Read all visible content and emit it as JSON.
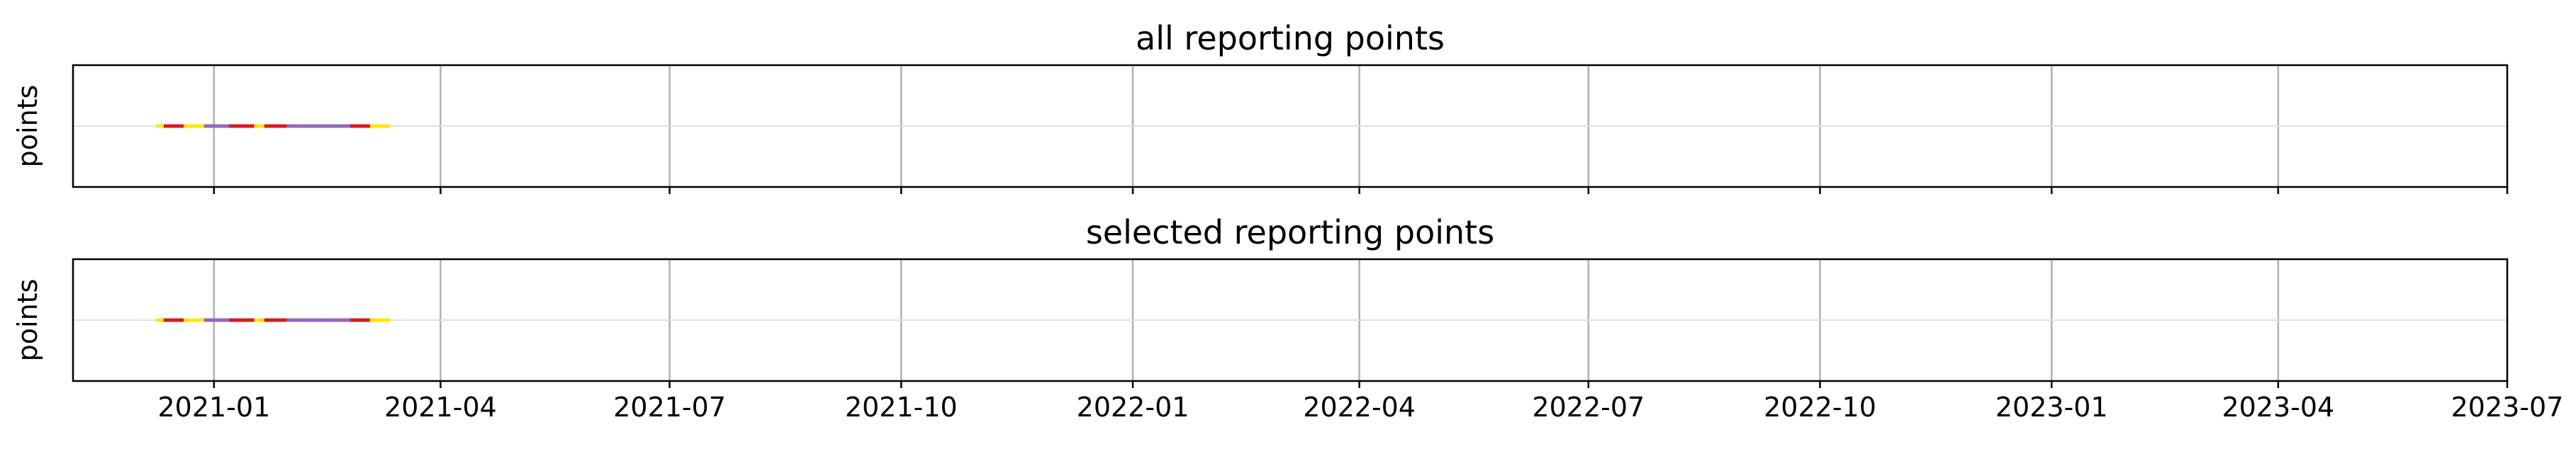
{
  "chart_data": [
    {
      "type": "line",
      "title": "all reporting points",
      "ylabel": "points",
      "xlabel": "",
      "xlim": [
        "2020-11-06",
        "2023-07-01"
      ],
      "ylim": [
        -0.05,
        0.05
      ],
      "yticks": [],
      "grid": {
        "x": true,
        "y_zero_line": true
      },
      "x_ticks": [
        "2021-01",
        "2021-04",
        "2021-07",
        "2021-10",
        "2022-01",
        "2022-04",
        "2022-07",
        "2022-10",
        "2023-01",
        "2023-04",
        "2023-07"
      ],
      "show_x_tick_labels": false,
      "segments": [
        {
          "start": "2020-12-09",
          "end": "2020-12-12",
          "y": 0,
          "color": "#ffe800"
        },
        {
          "start": "2020-12-12",
          "end": "2020-12-20",
          "y": 0,
          "color": "#d7191c"
        },
        {
          "start": "2020-12-20",
          "end": "2020-12-28",
          "y": 0,
          "color": "#ffe800"
        },
        {
          "start": "2020-12-28",
          "end": "2021-01-10",
          "y": 0,
          "color": "#9467bd"
        },
        {
          "start": "2021-01-07",
          "end": "2021-01-17",
          "y": 0,
          "color": "#d7191c"
        },
        {
          "start": "2021-01-17",
          "end": "2021-01-21",
          "y": 0,
          "color": "#ffe800"
        },
        {
          "start": "2021-01-21",
          "end": "2021-01-30",
          "y": 0,
          "color": "#d7191c"
        },
        {
          "start": "2021-01-30",
          "end": "2021-02-24",
          "y": 0,
          "color": "#9467bd"
        },
        {
          "start": "2021-02-24",
          "end": "2021-03-04",
          "y": 0,
          "color": "#d7191c"
        },
        {
          "start": "2021-03-04",
          "end": "2021-03-12",
          "y": 0,
          "color": "#ffe800"
        }
      ]
    },
    {
      "type": "line",
      "title": "selected reporting points",
      "ylabel": "points",
      "xlabel": "",
      "xlim": [
        "2020-11-06",
        "2023-07-01"
      ],
      "ylim": [
        -0.05,
        0.05
      ],
      "yticks": [],
      "grid": {
        "x": true,
        "y_zero_line": true
      },
      "x_ticks": [
        "2021-01",
        "2021-04",
        "2021-07",
        "2021-10",
        "2022-01",
        "2022-04",
        "2022-07",
        "2022-10",
        "2023-01",
        "2023-04",
        "2023-07"
      ],
      "show_x_tick_labels": true,
      "segments": [
        {
          "start": "2020-12-09",
          "end": "2020-12-12",
          "y": 0,
          "color": "#ffe800"
        },
        {
          "start": "2020-12-12",
          "end": "2020-12-20",
          "y": 0,
          "color": "#d7191c"
        },
        {
          "start": "2020-12-20",
          "end": "2020-12-28",
          "y": 0,
          "color": "#ffe800"
        },
        {
          "start": "2020-12-28",
          "end": "2021-01-10",
          "y": 0,
          "color": "#9467bd"
        },
        {
          "start": "2021-01-07",
          "end": "2021-01-17",
          "y": 0,
          "color": "#d7191c"
        },
        {
          "start": "2021-01-17",
          "end": "2021-01-21",
          "y": 0,
          "color": "#ffe800"
        },
        {
          "start": "2021-01-21",
          "end": "2021-01-30",
          "y": 0,
          "color": "#d7191c"
        },
        {
          "start": "2021-01-30",
          "end": "2021-02-24",
          "y": 0,
          "color": "#9467bd"
        },
        {
          "start": "2021-02-24",
          "end": "2021-03-04",
          "y": 0,
          "color": "#d7191c"
        },
        {
          "start": "2021-03-04",
          "end": "2021-03-12",
          "y": 0,
          "color": "#ffe800"
        }
      ]
    }
  ]
}
